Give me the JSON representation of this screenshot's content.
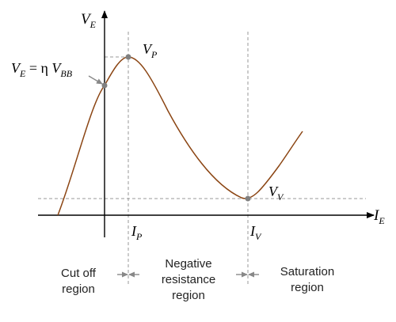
{
  "labels": {
    "y_axis": {
      "main": "V",
      "sub": "E"
    },
    "x_axis": {
      "main": "I",
      "sub": "E"
    },
    "peak_point": {
      "main": "V",
      "sub": "P"
    },
    "valley_point": {
      "main": "V",
      "sub": "V"
    },
    "peak_current": {
      "main": "I",
      "sub": "P"
    },
    "valley_current": {
      "main": "I",
      "sub": "V"
    },
    "intercept": {
      "lhs_main": "V",
      "lhs_sub": "E",
      "eq": " = η ",
      "rhs_main": "V",
      "rhs_sub": "BB"
    }
  },
  "regions": {
    "cutoff": [
      "Cut off",
      "region"
    ],
    "negative": [
      "Negative",
      "resistance",
      "region"
    ],
    "saturation": [
      "Saturation",
      "region"
    ]
  },
  "colors": {
    "curve": "#8b4513",
    "axis": "#000000",
    "guide": "#888888",
    "marker": "#808080"
  }
}
